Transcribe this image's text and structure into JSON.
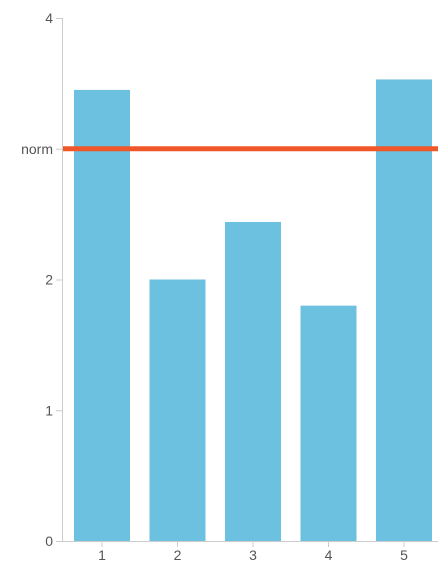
{
  "chart_data": {
    "type": "bar",
    "categories": [
      "1",
      "2",
      "3",
      "4",
      "5"
    ],
    "values": [
      3.45,
      2.0,
      2.44,
      1.8,
      3.53
    ],
    "ylim": [
      0,
      4
    ],
    "yticks": [
      {
        "value": 0,
        "label": "0"
      },
      {
        "value": 1,
        "label": "1"
      },
      {
        "value": 2,
        "label": "2"
      },
      {
        "value": 3,
        "label": "norm"
      },
      {
        "value": 4,
        "label": "4"
      }
    ],
    "reference_line": {
      "value": 3,
      "label": "norm",
      "color": "#f0582a"
    },
    "bar_color": "#6cc0e0",
    "grid": false,
    "legend": "none"
  }
}
